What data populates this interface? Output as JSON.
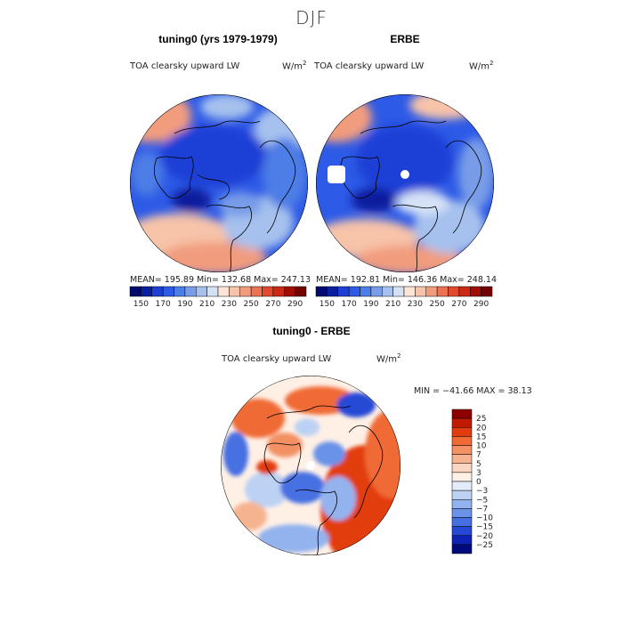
{
  "season": "DJF",
  "panels": [
    {
      "title": "tuning0 (yrs 1979-1979)",
      "variable": "TOA clearsky upward LW",
      "units_base": "W/m",
      "units_exp": "2",
      "stats": "MEAN= 195.89   Min= 132.68   Max= 247.13"
    },
    {
      "title": "ERBE",
      "variable": "TOA clearsky upward LW",
      "units_base": "W/m",
      "units_exp": "2",
      "stats": "MEAN= 192.81   Min= 146.36   Max= 248.14"
    },
    {
      "title": "tuning0 - ERBE",
      "variable": "TOA clearsky upward LW",
      "units_base": "W/m",
      "units_exp": "2",
      "stats": "MIN = −41.66 MAX =  38.13"
    }
  ],
  "abs_colorbar": {
    "colors": [
      "#000a6e",
      "#0a1f9e",
      "#1e3fd6",
      "#2d5ae6",
      "#4d7de6",
      "#789ce8",
      "#a6c1ee",
      "#d5e2f6",
      "#fde5d6",
      "#f7c3a9",
      "#f29c7e",
      "#eb7352",
      "#e04b30",
      "#cc2a17",
      "#a00d06",
      "#720000"
    ],
    "labels": [
      "150",
      "170",
      "190",
      "210",
      "230",
      "250",
      "270",
      "290"
    ]
  },
  "diff_colorbar": {
    "colors": [
      "#8e0000",
      "#c21a00",
      "#e23d10",
      "#ef6a35",
      "#f39064",
      "#f6b390",
      "#fbd6c2",
      "#fff0e6",
      "#e3ecfa",
      "#bcd1f4",
      "#93b3ee",
      "#6a92e8",
      "#4670e2",
      "#2548d6",
      "#0e23b4",
      "#000a7a"
    ],
    "labels": [
      "25",
      "20",
      "15",
      "10",
      "7",
      "5",
      "3",
      "0",
      "−3",
      "−5",
      "−7",
      "−10",
      "−15",
      "−20",
      "−25"
    ]
  },
  "chart_data": {
    "type": "heatmap",
    "projection": "north-polar-stereographic",
    "panels": [
      "tuning0 (yrs 1979-1979)",
      "ERBE",
      "tuning0 - ERBE"
    ],
    "abs_levels": [
      150,
      170,
      190,
      210,
      230,
      250,
      270,
      290
    ],
    "diff_levels": [
      -25,
      -20,
      -15,
      -10,
      -7,
      -5,
      -3,
      0,
      3,
      5,
      7,
      10,
      15,
      20,
      25
    ],
    "stats": [
      {
        "mean": 195.89,
        "min": 132.68,
        "max": 247.13
      },
      {
        "mean": 192.81,
        "min": 146.36,
        "max": 248.14
      },
      {
        "min": -41.66,
        "max": 38.13
      }
    ]
  }
}
